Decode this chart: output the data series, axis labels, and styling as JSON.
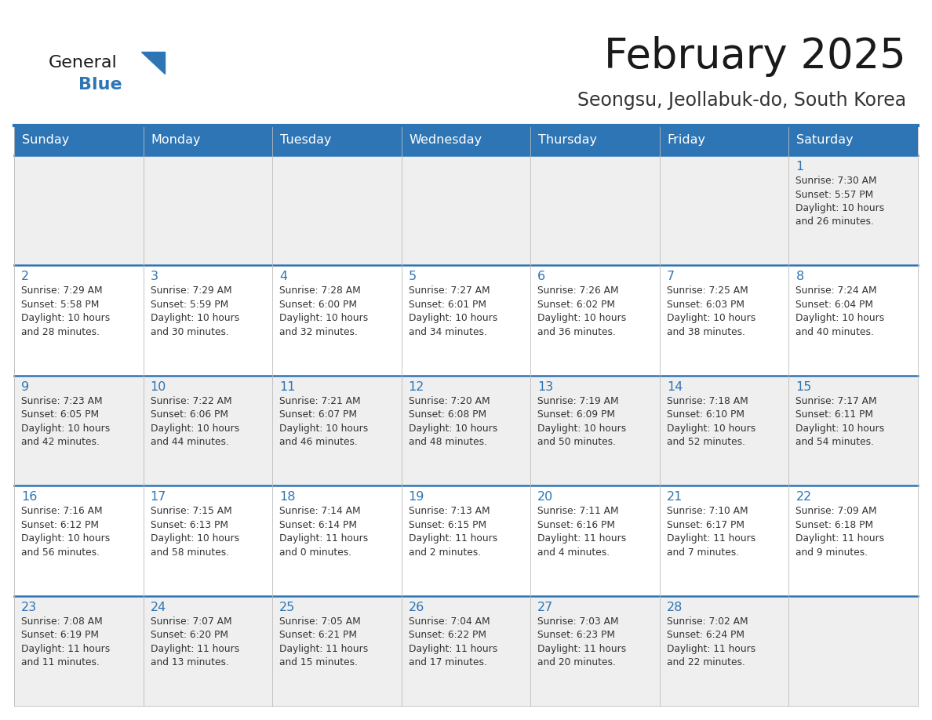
{
  "title": "February 2025",
  "subtitle": "Seongsu, Jeollabuk-do, South Korea",
  "days_of_week": [
    "Sunday",
    "Monday",
    "Tuesday",
    "Wednesday",
    "Thursday",
    "Friday",
    "Saturday"
  ],
  "header_bg": "#2E75B6",
  "header_text": "#FFFFFF",
  "cell_bg_odd": "#EFEFEF",
  "cell_bg_even": "#FFFFFF",
  "day_number_color": "#2E75B6",
  "text_color": "#333333",
  "border_color": "#2E75B6",
  "line_color_week": "#2E75B6",
  "line_color_day": "#CCCCCC",
  "title_color": "#1a1a1a",
  "subtitle_color": "#333333",
  "logo_general_color": "#1a1a1a",
  "logo_blue_color": "#2E75B6",
  "weeks": [
    [
      {
        "day": null,
        "info": null
      },
      {
        "day": null,
        "info": null
      },
      {
        "day": null,
        "info": null
      },
      {
        "day": null,
        "info": null
      },
      {
        "day": null,
        "info": null
      },
      {
        "day": null,
        "info": null
      },
      {
        "day": 1,
        "info": "Sunrise: 7:30 AM\nSunset: 5:57 PM\nDaylight: 10 hours\nand 26 minutes."
      }
    ],
    [
      {
        "day": 2,
        "info": "Sunrise: 7:29 AM\nSunset: 5:58 PM\nDaylight: 10 hours\nand 28 minutes."
      },
      {
        "day": 3,
        "info": "Sunrise: 7:29 AM\nSunset: 5:59 PM\nDaylight: 10 hours\nand 30 minutes."
      },
      {
        "day": 4,
        "info": "Sunrise: 7:28 AM\nSunset: 6:00 PM\nDaylight: 10 hours\nand 32 minutes."
      },
      {
        "day": 5,
        "info": "Sunrise: 7:27 AM\nSunset: 6:01 PM\nDaylight: 10 hours\nand 34 minutes."
      },
      {
        "day": 6,
        "info": "Sunrise: 7:26 AM\nSunset: 6:02 PM\nDaylight: 10 hours\nand 36 minutes."
      },
      {
        "day": 7,
        "info": "Sunrise: 7:25 AM\nSunset: 6:03 PM\nDaylight: 10 hours\nand 38 minutes."
      },
      {
        "day": 8,
        "info": "Sunrise: 7:24 AM\nSunset: 6:04 PM\nDaylight: 10 hours\nand 40 minutes."
      }
    ],
    [
      {
        "day": 9,
        "info": "Sunrise: 7:23 AM\nSunset: 6:05 PM\nDaylight: 10 hours\nand 42 minutes."
      },
      {
        "day": 10,
        "info": "Sunrise: 7:22 AM\nSunset: 6:06 PM\nDaylight: 10 hours\nand 44 minutes."
      },
      {
        "day": 11,
        "info": "Sunrise: 7:21 AM\nSunset: 6:07 PM\nDaylight: 10 hours\nand 46 minutes."
      },
      {
        "day": 12,
        "info": "Sunrise: 7:20 AM\nSunset: 6:08 PM\nDaylight: 10 hours\nand 48 minutes."
      },
      {
        "day": 13,
        "info": "Sunrise: 7:19 AM\nSunset: 6:09 PM\nDaylight: 10 hours\nand 50 minutes."
      },
      {
        "day": 14,
        "info": "Sunrise: 7:18 AM\nSunset: 6:10 PM\nDaylight: 10 hours\nand 52 minutes."
      },
      {
        "day": 15,
        "info": "Sunrise: 7:17 AM\nSunset: 6:11 PM\nDaylight: 10 hours\nand 54 minutes."
      }
    ],
    [
      {
        "day": 16,
        "info": "Sunrise: 7:16 AM\nSunset: 6:12 PM\nDaylight: 10 hours\nand 56 minutes."
      },
      {
        "day": 17,
        "info": "Sunrise: 7:15 AM\nSunset: 6:13 PM\nDaylight: 10 hours\nand 58 minutes."
      },
      {
        "day": 18,
        "info": "Sunrise: 7:14 AM\nSunset: 6:14 PM\nDaylight: 11 hours\nand 0 minutes."
      },
      {
        "day": 19,
        "info": "Sunrise: 7:13 AM\nSunset: 6:15 PM\nDaylight: 11 hours\nand 2 minutes."
      },
      {
        "day": 20,
        "info": "Sunrise: 7:11 AM\nSunset: 6:16 PM\nDaylight: 11 hours\nand 4 minutes."
      },
      {
        "day": 21,
        "info": "Sunrise: 7:10 AM\nSunset: 6:17 PM\nDaylight: 11 hours\nand 7 minutes."
      },
      {
        "day": 22,
        "info": "Sunrise: 7:09 AM\nSunset: 6:18 PM\nDaylight: 11 hours\nand 9 minutes."
      }
    ],
    [
      {
        "day": 23,
        "info": "Sunrise: 7:08 AM\nSunset: 6:19 PM\nDaylight: 11 hours\nand 11 minutes."
      },
      {
        "day": 24,
        "info": "Sunrise: 7:07 AM\nSunset: 6:20 PM\nDaylight: 11 hours\nand 13 minutes."
      },
      {
        "day": 25,
        "info": "Sunrise: 7:05 AM\nSunset: 6:21 PM\nDaylight: 11 hours\nand 15 minutes."
      },
      {
        "day": 26,
        "info": "Sunrise: 7:04 AM\nSunset: 6:22 PM\nDaylight: 11 hours\nand 17 minutes."
      },
      {
        "day": 27,
        "info": "Sunrise: 7:03 AM\nSunset: 6:23 PM\nDaylight: 11 hours\nand 20 minutes."
      },
      {
        "day": 28,
        "info": "Sunrise: 7:02 AM\nSunset: 6:24 PM\nDaylight: 11 hours\nand 22 minutes."
      },
      {
        "day": null,
        "info": null
      }
    ]
  ]
}
